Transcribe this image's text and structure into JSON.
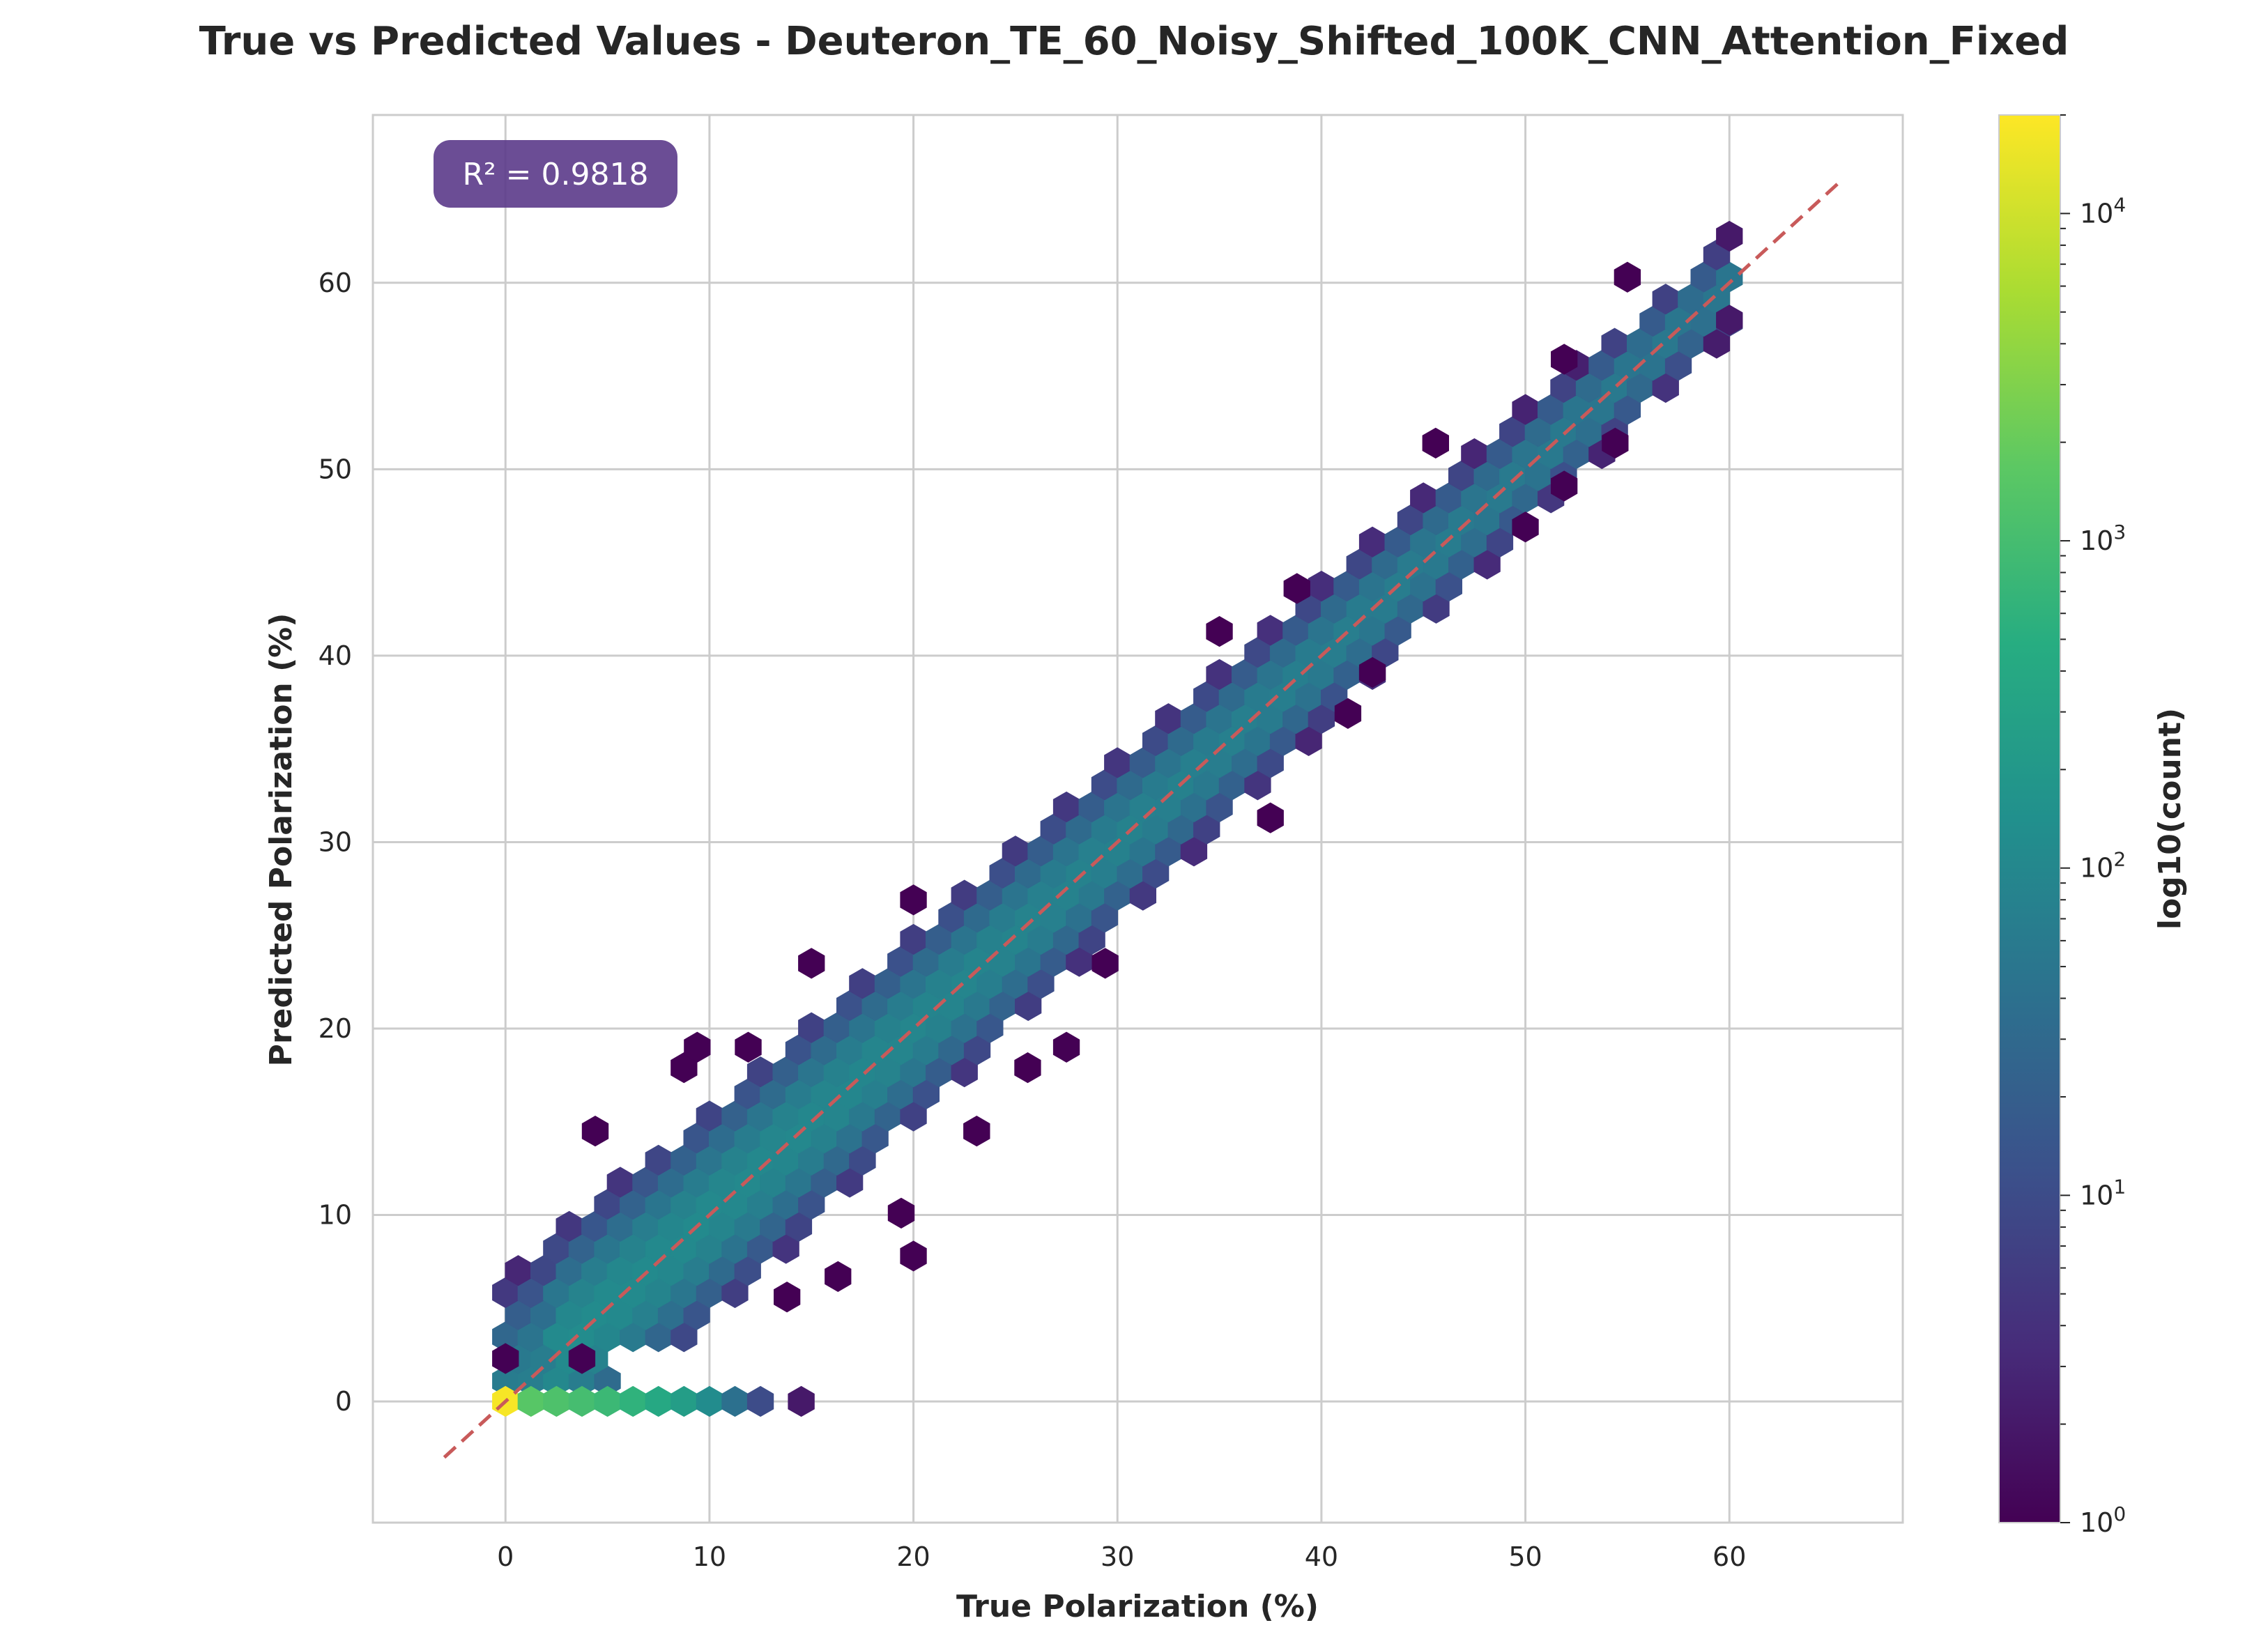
{
  "chart_data": {
    "type": "heatmap",
    "subtype": "hexbin",
    "title": "True vs Predicted Values - Deuteron_TE_60_Noisy_Shifted_100K_CNN_Attention_Fixed",
    "xlabel": "True Polarization (%)",
    "ylabel": "Predicted Polarization (%)",
    "xlim": [
      -6.5,
      68.5
    ],
    "ylim": [
      -6.5,
      69
    ],
    "xticks": [
      0,
      10,
      20,
      30,
      40,
      50,
      60
    ],
    "yticks": [
      0,
      10,
      20,
      30,
      40,
      50,
      60
    ],
    "grid": true,
    "reference_line": {
      "style": "dashed",
      "color": "#c85a5a",
      "from": [
        -3,
        -3
      ],
      "to": [
        65.5,
        65.5
      ]
    },
    "annotation": {
      "text": "R² = 0.9818",
      "position": "top-left"
    },
    "colormap": "viridis",
    "colorbar": {
      "label": "log10(count)",
      "scale": "log",
      "range": [
        1,
        20000
      ],
      "ticks": [
        {
          "value": 1,
          "base": "10",
          "exp": "0"
        },
        {
          "value": 10,
          "base": "10",
          "exp": "1"
        },
        {
          "value": 100,
          "base": "10",
          "exp": "2"
        },
        {
          "value": 1000,
          "base": "10",
          "exp": "3"
        },
        {
          "value": 10000,
          "base": "10",
          "exp": "4"
        }
      ]
    },
    "hexbin_model": {
      "hex_width": 1.25,
      "band_halfwidth_at_0": 6.5,
      "band_halfwidth_at_60": 2.6
    },
    "zero_row": [
      {
        "x": 0.0,
        "y": 0.0,
        "count": 18000
      },
      {
        "x": 1.25,
        "y": 0.0,
        "count": 1500
      },
      {
        "x": 2.5,
        "y": 0.0,
        "count": 1200
      },
      {
        "x": 3.75,
        "y": 0.0,
        "count": 1000
      },
      {
        "x": 5.0,
        "y": 0.0,
        "count": 800
      },
      {
        "x": 6.25,
        "y": 0.0,
        "count": 600
      },
      {
        "x": 7.5,
        "y": 0.0,
        "count": 400
      },
      {
        "x": 8.75,
        "y": 0.0,
        "count": 250
      },
      {
        "x": 10.0,
        "y": 0.0,
        "count": 120
      },
      {
        "x": 11.25,
        "y": 0.0,
        "count": 40
      },
      {
        "x": 12.5,
        "y": 0.0,
        "count": 10
      },
      {
        "x": 14.5,
        "y": 0.0,
        "count": 2
      }
    ],
    "scattered_bins": [
      {
        "x": 0.0,
        "y": 2.3,
        "count": 1
      },
      {
        "x": 3.75,
        "y": 2.3,
        "count": 1
      },
      {
        "x": 20.0,
        "y": 7.8,
        "count": 1
      },
      {
        "x": 19.4,
        "y": 10.1,
        "count": 1
      },
      {
        "x": 8.75,
        "y": 17.9,
        "count": 1
      },
      {
        "x": 9.4,
        "y": 19.0,
        "count": 1
      },
      {
        "x": 11.9,
        "y": 19.0,
        "count": 1
      },
      {
        "x": 15.0,
        "y": 23.5,
        "count": 1
      },
      {
        "x": 20.0,
        "y": 26.9,
        "count": 1
      },
      {
        "x": 23.1,
        "y": 14.5,
        "count": 1
      },
      {
        "x": 25.6,
        "y": 17.9,
        "count": 1
      },
      {
        "x": 27.5,
        "y": 19.0,
        "count": 1
      },
      {
        "x": 29.4,
        "y": 23.5,
        "count": 1
      },
      {
        "x": 37.5,
        "y": 31.3,
        "count": 1
      },
      {
        "x": 41.3,
        "y": 36.9,
        "count": 1
      },
      {
        "x": 42.5,
        "y": 39.1,
        "count": 1
      },
      {
        "x": 38.8,
        "y": 43.6,
        "count": 1
      },
      {
        "x": 35.0,
        "y": 41.3,
        "count": 1
      },
      {
        "x": 50.0,
        "y": 46.9,
        "count": 1
      },
      {
        "x": 51.9,
        "y": 49.1,
        "count": 1
      },
      {
        "x": 45.6,
        "y": 51.4,
        "count": 1
      },
      {
        "x": 51.9,
        "y": 55.9,
        "count": 1
      },
      {
        "x": 54.4,
        "y": 51.4,
        "count": 1
      },
      {
        "x": 55.0,
        "y": 60.3,
        "count": 1
      },
      {
        "x": 60.0,
        "y": 62.5,
        "count": 2
      },
      {
        "x": 60.0,
        "y": 58.0,
        "count": 2
      },
      {
        "x": 4.4,
        "y": 14.5,
        "count": 1
      },
      {
        "x": 13.8,
        "y": 5.6,
        "count": 1
      },
      {
        "x": 16.3,
        "y": 6.7,
        "count": 1
      }
    ],
    "annotation_text": "R² = 0.9818"
  }
}
